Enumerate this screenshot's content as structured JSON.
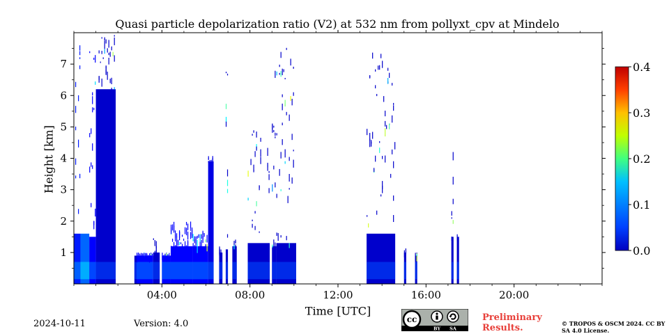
{
  "figure": {
    "date": "2024-10-11",
    "version": "Version: 4.0",
    "preliminary": "Preliminary Results.",
    "copyright": "© TROPOS & OSCM 2024. CC BY SA 4.0 License.",
    "license_badge": {
      "by_label": "BY",
      "sa_label": "SA",
      "icons": [
        "cc-icon",
        "attribution-icon",
        "share-alike-icon"
      ]
    }
  },
  "chart_data": {
    "type": "heatmap",
    "title": "Quasi particle depolarization ratio (V2) at 532 nm from pollyxt_cpv at Mindelo",
    "xlabel": "Time [UTC]",
    "ylabel": "Height [km]",
    "xlim_hours": [
      0,
      24
    ],
    "ylim_km": [
      0,
      8
    ],
    "x_ticks": [
      "04:00",
      "08:00",
      "12:00",
      "16:00",
      "20:00"
    ],
    "x_tick_hours": [
      4,
      8,
      12,
      16,
      20
    ],
    "y_ticks": [
      "1",
      "2",
      "3",
      "4",
      "5",
      "6",
      "7"
    ],
    "y_tick_values": [
      1,
      2,
      3,
      4,
      5,
      6,
      7
    ],
    "colorbar": {
      "min": 0.0,
      "max": 0.4,
      "tick_labels": [
        "0.0",
        "0.1",
        "0.2",
        "0.3",
        "0.4"
      ],
      "tick_values": [
        0.0,
        0.1,
        0.2,
        0.3,
        0.4
      ],
      "colormap": "jet"
    },
    "data_segments": [
      {
        "t0": 0.0,
        "t1": 0.3,
        "h_top": 8.0,
        "h_dense": 1.6,
        "value": 0.06
      },
      {
        "t0": 0.3,
        "t1": 0.7,
        "h_top": 1.6,
        "h_dense": 1.6,
        "value": 0.09
      },
      {
        "t0": 0.7,
        "t1": 1.0,
        "h_top": 8.0,
        "h_dense": 1.5,
        "value": 0.05
      },
      {
        "t0": 1.0,
        "t1": 1.9,
        "h_top": 8.0,
        "h_dense": 6.2,
        "value": 0.03
      },
      {
        "t0": 2.75,
        "t1": 2.85,
        "h_top": 8.0,
        "h_dense": 0.9,
        "value": 0.03
      },
      {
        "t0": 2.85,
        "t1": 3.6,
        "h_top": 1.0,
        "h_dense": 0.9,
        "value": 0.05
      },
      {
        "t0": 3.6,
        "t1": 3.9,
        "h_top": 1.5,
        "h_dense": 1.0,
        "value": 0.03
      },
      {
        "t0": 4.0,
        "t1": 4.4,
        "h_top": 1.0,
        "h_dense": 0.9,
        "value": 0.05
      },
      {
        "t0": 4.4,
        "t1": 5.4,
        "h_top": 2.0,
        "h_dense": 1.2,
        "value": 0.05
      },
      {
        "t0": 5.4,
        "t1": 6.1,
        "h_top": 1.7,
        "h_dense": 1.2,
        "value": 0.05
      },
      {
        "t0": 6.1,
        "t1": 6.35,
        "h_top": 4.1,
        "h_dense": 3.9,
        "value": 0.04
      },
      {
        "t0": 6.6,
        "t1": 6.75,
        "h_top": 1.2,
        "h_dense": 1.0,
        "value": 0.03
      },
      {
        "t0": 6.9,
        "t1": 7.0,
        "h_top": 7.2,
        "h_dense": 1.1,
        "value": 0.03
      },
      {
        "t0": 7.2,
        "t1": 7.4,
        "h_top": 1.5,
        "h_dense": 1.2,
        "value": 0.03
      },
      {
        "t0": 7.9,
        "t1": 8.9,
        "h_top": 5.0,
        "h_dense": 1.3,
        "value": 0.03
      },
      {
        "t0": 9.0,
        "t1": 9.2,
        "h_top": 7.0,
        "h_dense": 1.2,
        "value": 0.03
      },
      {
        "t0": 9.2,
        "t1": 10.1,
        "h_top": 7.8,
        "h_dense": 1.3,
        "value": 0.03
      },
      {
        "t0": 13.3,
        "t1": 14.6,
        "h_top": 7.5,
        "h_dense": 1.6,
        "value": 0.03
      },
      {
        "t0": 15.0,
        "t1": 15.1,
        "h_top": 1.2,
        "h_dense": 1.0,
        "value": 0.03
      },
      {
        "t0": 15.5,
        "t1": 15.6,
        "h_top": 1.0,
        "h_dense": 0.9,
        "value": 0.03
      },
      {
        "t0": 17.15,
        "t1": 17.25,
        "h_top": 4.2,
        "h_dense": 1.5,
        "value": 0.03
      },
      {
        "t0": 17.4,
        "t1": 17.5,
        "h_top": 1.6,
        "h_dense": 1.5,
        "value": 0.03
      }
    ]
  }
}
